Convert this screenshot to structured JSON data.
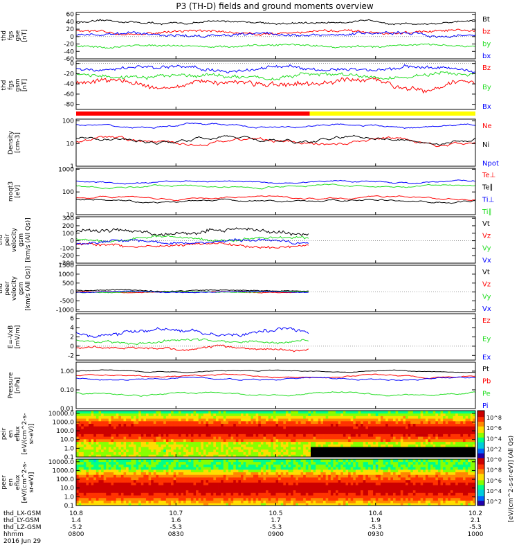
{
  "title": "P3 (TH-D) fields and ground moments overview",
  "colors": {
    "black": "#000000",
    "red": "#ff0000",
    "green": "#22dd22",
    "blue": "#0000ff",
    "yellow": "#ffff00"
  },
  "chart_data": [
    {
      "type": "line",
      "ylabel": [
        "thd",
        "fgs",
        "gse",
        "[nT]"
      ],
      "ylim": [
        -60,
        65
      ],
      "scale": "linear",
      "yticks": [
        -60,
        -40,
        -20,
        0,
        20,
        40,
        60
      ],
      "yticklabels": [
        "-60",
        "-40",
        "-20",
        "0",
        "20",
        "40",
        "60"
      ],
      "series": [
        {
          "name": "Bt",
          "color": "black",
          "base": 38,
          "amp": 6
        },
        {
          "name": "bz",
          "color": "red",
          "base": 12,
          "amp": 8
        },
        {
          "name": "by",
          "color": "green",
          "base": -25,
          "amp": 6
        },
        {
          "name": "bx",
          "color": "blue",
          "base": 6,
          "amp": 9
        }
      ]
    },
    {
      "type": "line",
      "ylabel": [
        "thd",
        "fgs",
        "gsm",
        "[nT]"
      ],
      "ylim": [
        -90,
        5
      ],
      "scale": "linear",
      "yticks": [
        -80,
        -60,
        -40,
        -20,
        0
      ],
      "yticklabels": [
        "-80",
        "-60",
        "-40",
        "-20",
        "0"
      ],
      "series": [
        {
          "name": "Bz",
          "color": "red",
          "base": -40,
          "amp": 12
        },
        {
          "name": "By",
          "color": "green",
          "base": -25,
          "amp": 8
        },
        {
          "name": "Bx",
          "color": "blue",
          "base": -10,
          "amp": 8
        }
      ]
    },
    {
      "type": "line",
      "ylabel": [
        "Density",
        "[cm-3]"
      ],
      "ylim": [
        1,
        120
      ],
      "scale": "log",
      "yticks": [
        1,
        10,
        100
      ],
      "yticklabels": [
        "1",
        "10",
        "100"
      ],
      "series": [
        {
          "name": "Ne",
          "color": "red",
          "base": 12,
          "amp": 0.25
        },
        {
          "name": "Ni",
          "color": "black",
          "base": 15,
          "amp": 0.25
        },
        {
          "name": "Npot",
          "color": "blue",
          "base": 60,
          "amp": 0.15
        }
      ]
    },
    {
      "type": "line",
      "ylabel": [
        "moqt3",
        "[eV]"
      ],
      "ylim": [
        10,
        1100
      ],
      "scale": "log",
      "yticks": [
        10,
        100,
        1000
      ],
      "yticklabels": [
        "10",
        "100",
        "1000"
      ],
      "series": [
        {
          "name": "Te⊥",
          "color": "red",
          "base": 55,
          "amp": 0.12
        },
        {
          "name": "Te∥",
          "color": "black",
          "base": 40,
          "amp": 0.12
        },
        {
          "name": "Ti⊥",
          "color": "blue",
          "base": 280,
          "amp": 0.12
        },
        {
          "name": "Ti∥",
          "color": "green",
          "base": 180,
          "amp": 0.12
        }
      ]
    },
    {
      "type": "line",
      "ylabel": [
        "thd",
        "peir",
        "velocity",
        "gsm",
        "[km/s (All Qs)]"
      ],
      "ylim": [
        -300,
        320
      ],
      "scale": "linear",
      "yticks": [
        -300,
        -200,
        -100,
        0,
        100,
        200,
        300
      ],
      "yticklabels": [
        "-300",
        "-200",
        "-100",
        "0",
        "100",
        "200",
        "300"
      ],
      "series": [
        {
          "name": "Vt",
          "color": "black",
          "base": 120,
          "amp": 60
        },
        {
          "name": "Vz",
          "color": "red",
          "base": -60,
          "amp": 40
        },
        {
          "name": "Vy",
          "color": "green",
          "base": 30,
          "amp": 40
        },
        {
          "name": "Vx",
          "color": "blue",
          "base": -20,
          "amp": 40
        }
      ]
    },
    {
      "type": "line",
      "ylabel": [
        "thd",
        "peer",
        "velocity",
        "gsm",
        "[km/s (All Qs)]"
      ],
      "ylim": [
        -1100,
        1500
      ],
      "scale": "linear",
      "yticks": [
        -1000,
        -500,
        0,
        500,
        1000,
        1500
      ],
      "yticklabels": [
        "-1000",
        "-500",
        "0",
        "500",
        "1000",
        "1500"
      ],
      "series": [
        {
          "name": "Vt",
          "color": "black",
          "base": 80,
          "amp": 60
        },
        {
          "name": "Vz",
          "color": "red",
          "base": 0,
          "amp": 50
        },
        {
          "name": "Vy",
          "color": "green",
          "base": 0,
          "amp": 50
        },
        {
          "name": "Vx",
          "color": "blue",
          "base": 0,
          "amp": 50
        }
      ]
    },
    {
      "type": "line",
      "ylabel": [
        "E=-VxB",
        "[mV/m]"
      ],
      "ylim": [
        -3,
        7
      ],
      "scale": "linear",
      "yticks": [
        -2,
        0,
        2,
        4,
        6
      ],
      "yticklabels": [
        "-2",
        "0",
        "2",
        "4",
        "6"
      ],
      "series": [
        {
          "name": "Ez",
          "color": "red",
          "base": -0.5,
          "amp": 0.6
        },
        {
          "name": "Ey",
          "color": "green",
          "base": 1,
          "amp": 0.6
        },
        {
          "name": "Ex",
          "color": "blue",
          "base": 3,
          "amp": 0.9
        }
      ]
    },
    {
      "type": "line",
      "ylabel": [
        "Pressure",
        "[nPa]"
      ],
      "ylim": [
        0.01,
        3
      ],
      "scale": "log",
      "yticks": [
        0.01,
        0.1,
        1
      ],
      "yticklabels": [
        "0.01",
        "0.10",
        "1.00"
      ],
      "series": [
        {
          "name": "Pt",
          "color": "black",
          "base": 1.0,
          "amp": 0.08
        },
        {
          "name": "Pb",
          "color": "red",
          "base": 0.55,
          "amp": 0.12
        },
        {
          "name": "Pe",
          "color": "green",
          "base": 0.06,
          "amp": 0.15
        },
        {
          "name": "Pi",
          "color": "blue",
          "base": 0.4,
          "amp": 0.12
        }
      ]
    },
    {
      "type": "heatmap",
      "ylabel": [
        "thd",
        "peir",
        "en",
        "eflux",
        "[eV/(cm^2-s-",
        "sr-eV)]"
      ],
      "ylim": [
        0.1,
        20000
      ],
      "scale": "log",
      "yticks": [
        0.1,
        1,
        10,
        100,
        1000,
        10000
      ],
      "yticklabels": [
        "0.1",
        "1.0",
        "10.0",
        "100.0",
        "1000.0",
        "10000.0"
      ]
    },
    {
      "type": "heatmap",
      "ylabel": [
        "thd",
        "peer",
        "en",
        "eflux",
        "[eV/(cm^2-s-",
        "sr-eV)]"
      ],
      "ylim": [
        0.1,
        20000
      ],
      "scale": "log",
      "yticks": [
        0.1,
        1,
        10,
        100,
        1000,
        10000
      ],
      "yticklabels": [
        "0.1",
        "1.0",
        "10.0",
        "100.0",
        "1000.0",
        "10000.0"
      ]
    }
  ],
  "colorbar": {
    "label": "[eV/(cm^2-s-sr-eV)] (All Qs)",
    "ticks": [
      "10^8",
      "10^6",
      "10^4",
      "10^2",
      "10^0",
      "10^8",
      "10^6",
      "10^4",
      "10^2"
    ]
  },
  "mode_bar": {
    "red_until_fraction": 0.585,
    "secondary_color": "yellow"
  },
  "xaxis": {
    "time_start": "0800",
    "time_end": "1000",
    "tick_times": [
      "0800",
      "0830",
      "0900",
      "0930",
      "1000"
    ],
    "rows": [
      {
        "label": "thd_LX-GSM",
        "values": [
          "10.8",
          "10.7",
          "10.5",
          "10.4",
          "10.2"
        ]
      },
      {
        "label": "thd_LY-GSM",
        "values": [
          "1.4",
          "1.6",
          "1.7",
          "1.9",
          "2.1"
        ]
      },
      {
        "label": "thd_LZ-GSM",
        "values": [
          "-5.2",
          "-5.3",
          "-5.3",
          "-5.3",
          "-5.3"
        ]
      },
      {
        "label": "hhmm",
        "values": [
          "0800",
          "0830",
          "0900",
          "0930",
          "1000"
        ]
      }
    ],
    "date": "2016 Jun 29"
  }
}
